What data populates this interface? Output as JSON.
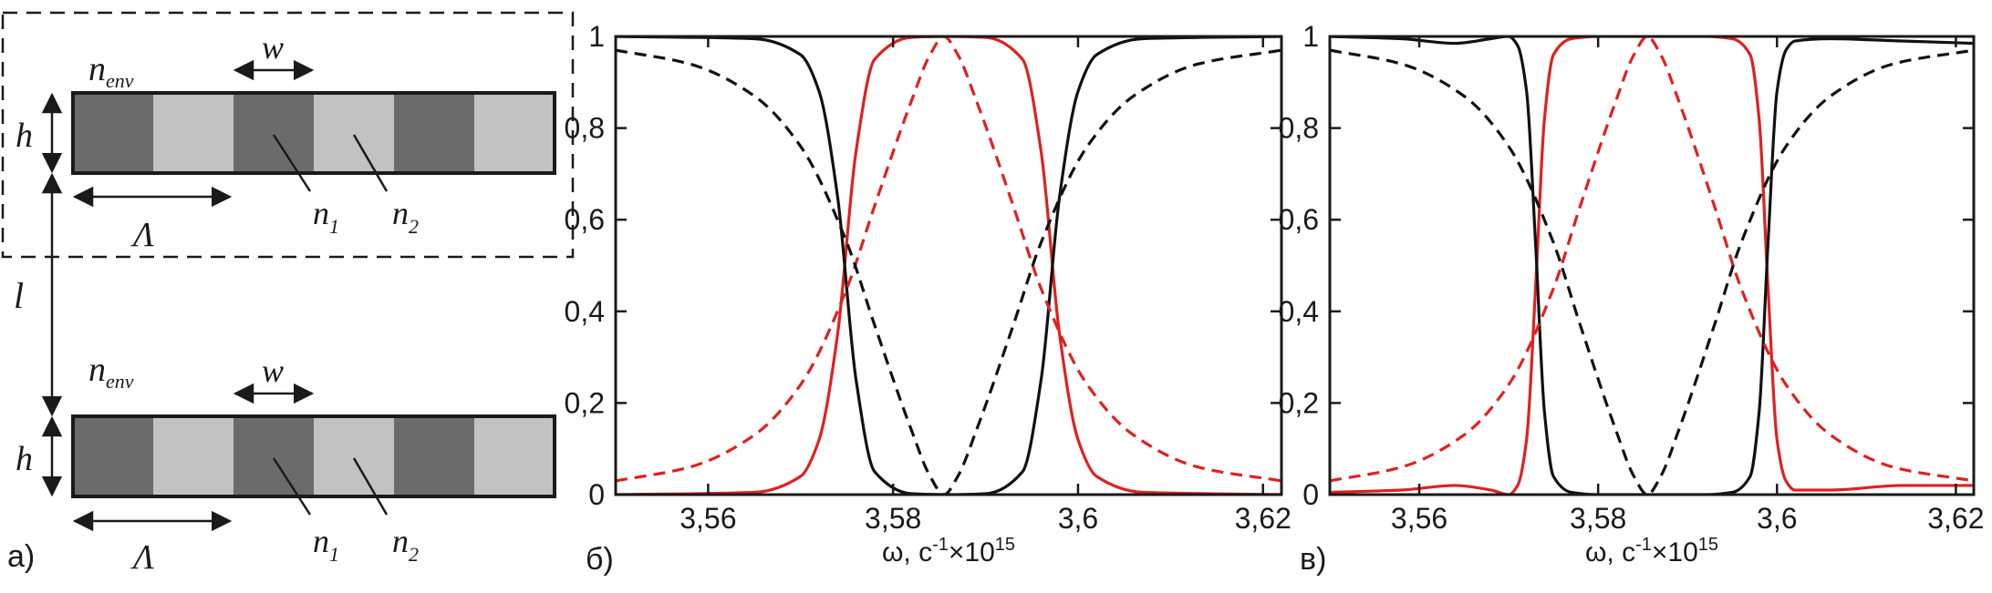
{
  "diagram": {
    "label": "а)",
    "grating": {
      "n_env": {
        "base": "n",
        "sub": "env"
      },
      "w": "w",
      "h": "h",
      "period": "Λ",
      "n1": {
        "base": "n",
        "sub": "1"
      },
      "n2": {
        "base": "n",
        "sub": "2"
      }
    },
    "separation": "l",
    "colors": {
      "dark_cell": "#6b6b6b",
      "light_cell": "#c2c2c2"
    }
  },
  "chart_data": [
    {
      "type": "line",
      "panel_label": "б)",
      "xlabel": {
        "text": "ω, c",
        "sup1": "-1",
        "mid": "×10",
        "sup2": "15"
      },
      "ylabel": "",
      "xlim": [
        3.55,
        3.622
      ],
      "ylim": [
        0,
        1
      ],
      "xticks": [
        "3,56",
        "3,58",
        "3,6",
        "3,62"
      ],
      "xtick_values": [
        3.56,
        3.58,
        3.6,
        3.62
      ],
      "yticks": [
        "0",
        "0,2",
        "0,4",
        "0,6",
        "0,8",
        "1"
      ],
      "ytick_values": [
        0,
        0.2,
        0.4,
        0.6,
        0.8,
        1
      ],
      "grid": false,
      "series": [
        {
          "color": "#e02020",
          "dash": "solid",
          "x": [
            3.55,
            3.565,
            3.57,
            3.572,
            3.574,
            3.576,
            3.578,
            3.582,
            3.586,
            3.59,
            3.594,
            3.596,
            3.598,
            3.6,
            3.602,
            3.607,
            3.622
          ],
          "y": [
            0,
            0.005,
            0.04,
            0.12,
            0.35,
            0.75,
            0.95,
            0.998,
            1,
            0.998,
            0.95,
            0.75,
            0.35,
            0.12,
            0.04,
            0.005,
            0
          ]
        },
        {
          "color": "#111111",
          "dash": "solid",
          "x": [
            3.55,
            3.565,
            3.57,
            3.572,
            3.574,
            3.576,
            3.578,
            3.582,
            3.586,
            3.59,
            3.594,
            3.596,
            3.598,
            3.6,
            3.602,
            3.607,
            3.622
          ],
          "y": [
            1,
            0.995,
            0.96,
            0.88,
            0.65,
            0.25,
            0.05,
            0.002,
            0,
            0.002,
            0.05,
            0.25,
            0.65,
            0.88,
            0.96,
            0.995,
            1
          ]
        },
        {
          "color": "#e02020",
          "dash": "dashed",
          "x": [
            3.55,
            3.558,
            3.565,
            3.57,
            3.575,
            3.578,
            3.582,
            3.584,
            3.5855,
            3.587,
            3.589,
            3.593,
            3.596,
            3.601,
            3.606,
            3.613,
            3.622
          ],
          "y": [
            0.03,
            0.06,
            0.13,
            0.24,
            0.45,
            0.63,
            0.86,
            0.96,
            1,
            0.96,
            0.86,
            0.63,
            0.45,
            0.24,
            0.13,
            0.06,
            0.03
          ]
        },
        {
          "color": "#111111",
          "dash": "dashed",
          "x": [
            3.55,
            3.558,
            3.565,
            3.57,
            3.575,
            3.578,
            3.582,
            3.584,
            3.5855,
            3.587,
            3.589,
            3.593,
            3.596,
            3.601,
            3.606,
            3.613,
            3.622
          ],
          "y": [
            0.97,
            0.94,
            0.87,
            0.76,
            0.55,
            0.37,
            0.14,
            0.04,
            0,
            0.04,
            0.14,
            0.37,
            0.55,
            0.76,
            0.87,
            0.94,
            0.97
          ]
        }
      ]
    },
    {
      "type": "line",
      "panel_label": "в)",
      "xlabel": {
        "text": "ω, c",
        "sup1": "-1",
        "mid": "×10",
        "sup2": "15"
      },
      "ylabel": "",
      "xlim": [
        3.55,
        3.622
      ],
      "ylim": [
        0,
        1
      ],
      "xticks": [
        "3,56",
        "3,58",
        "3,6",
        "3,62"
      ],
      "xtick_values": [
        3.56,
        3.58,
        3.6,
        3.62
      ],
      "yticks": [
        "0",
        "0,2",
        "0,4",
        "0,6",
        "0,8",
        "1"
      ],
      "ytick_values": [
        0,
        0.2,
        0.4,
        0.6,
        0.8,
        1
      ],
      "grid": false,
      "series": [
        {
          "color": "#e02020",
          "dash": "solid",
          "x": [
            3.55,
            3.558,
            3.564,
            3.568,
            3.57,
            3.571,
            3.572,
            3.573,
            3.574,
            3.575,
            3.577,
            3.58,
            3.586,
            3.592,
            3.595,
            3.597,
            3.598,
            3.599,
            3.6,
            3.601,
            3.602,
            3.606,
            3.614,
            3.622
          ],
          "y": [
            0.005,
            0.01,
            0.02,
            0.01,
            0,
            0.02,
            0.12,
            0.45,
            0.82,
            0.96,
            0.995,
            1,
            1,
            1,
            0.995,
            0.96,
            0.82,
            0.45,
            0.12,
            0.03,
            0.01,
            0.01,
            0.02,
            0.02
          ]
        },
        {
          "color": "#111111",
          "dash": "solid",
          "x": [
            3.55,
            3.558,
            3.564,
            3.568,
            3.57,
            3.571,
            3.572,
            3.573,
            3.574,
            3.575,
            3.577,
            3.58,
            3.586,
            3.592,
            3.595,
            3.597,
            3.598,
            3.599,
            3.6,
            3.601,
            3.602,
            3.606,
            3.614,
            3.622
          ],
          "y": [
            1,
            0.995,
            0.985,
            0.995,
            1,
            0.98,
            0.88,
            0.55,
            0.18,
            0.04,
            0.005,
            0,
            0,
            0,
            0.005,
            0.04,
            0.18,
            0.55,
            0.88,
            0.97,
            0.99,
            0.995,
            0.99,
            0.985
          ]
        },
        {
          "color": "#e02020",
          "dash": "dashed",
          "x": [
            3.55,
            3.558,
            3.565,
            3.57,
            3.575,
            3.578,
            3.582,
            3.584,
            3.5855,
            3.587,
            3.589,
            3.593,
            3.596,
            3.601,
            3.606,
            3.613,
            3.622
          ],
          "y": [
            0.03,
            0.06,
            0.13,
            0.24,
            0.45,
            0.63,
            0.86,
            0.96,
            1,
            0.96,
            0.86,
            0.63,
            0.45,
            0.24,
            0.13,
            0.06,
            0.03
          ]
        },
        {
          "color": "#111111",
          "dash": "dashed",
          "x": [
            3.55,
            3.558,
            3.565,
            3.57,
            3.575,
            3.578,
            3.582,
            3.584,
            3.5855,
            3.587,
            3.589,
            3.593,
            3.596,
            3.601,
            3.606,
            3.613,
            3.622
          ],
          "y": [
            0.97,
            0.94,
            0.87,
            0.76,
            0.55,
            0.37,
            0.14,
            0.04,
            0,
            0.04,
            0.14,
            0.37,
            0.55,
            0.76,
            0.87,
            0.94,
            0.97
          ]
        }
      ]
    }
  ]
}
